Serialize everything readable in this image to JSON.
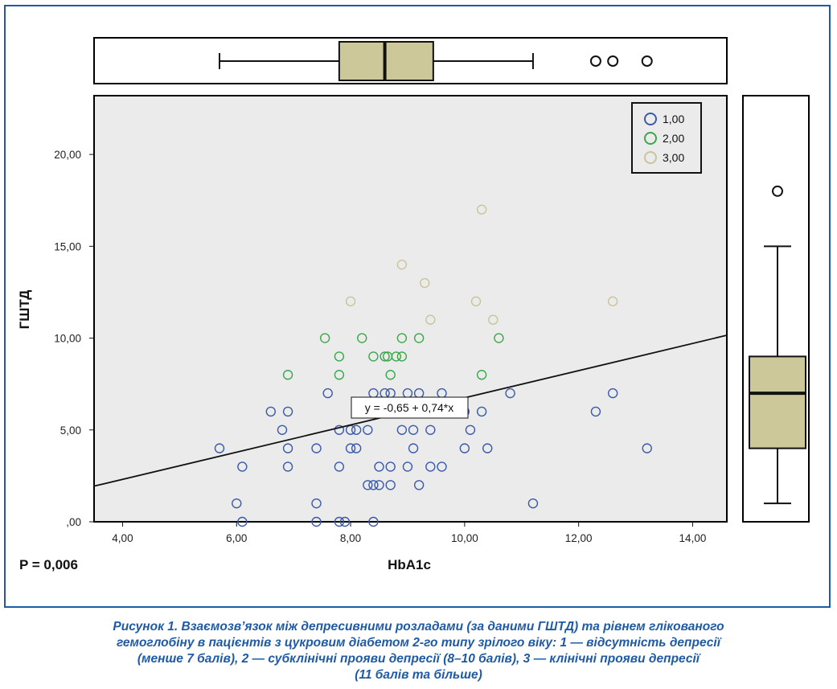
{
  "chart_data": {
    "type": "scatter",
    "xlabel": "HbA1c",
    "ylabel": "ГШТД",
    "xlim": [
      3.5,
      14.6
    ],
    "ylim": [
      0,
      23.2
    ],
    "x_ticks": [
      4,
      6,
      8,
      10,
      12,
      14
    ],
    "x_tick_labels": [
      "4,00",
      "6,00",
      "8,00",
      "10,00",
      "12,00",
      "14,00"
    ],
    "y_ticks": [
      0,
      5,
      10,
      15,
      20
    ],
    "y_tick_labels": [
      ",00",
      "5,00",
      "10,00",
      "15,00",
      "20,00"
    ],
    "grid": false,
    "legend_position": "top-right",
    "p_value_label": "P = 0,006",
    "equation_label": "y = -0,65 + 0,74*x",
    "fit_line": {
      "intercept": -0.65,
      "slope": 0.74
    },
    "colors": {
      "1,00": "#3b5ba8",
      "2,00": "#3aa84a",
      "3,00": "#c9c49a",
      "box_fill": "#cdc89a",
      "plot_bg": "#ebebeb"
    },
    "series": [
      {
        "name": "1,00",
        "points": [
          [
            5.7,
            4
          ],
          [
            6.0,
            1
          ],
          [
            6.1,
            3
          ],
          [
            6.1,
            0
          ],
          [
            6.6,
            6
          ],
          [
            6.8,
            5
          ],
          [
            6.9,
            6
          ],
          [
            6.9,
            4
          ],
          [
            6.9,
            3
          ],
          [
            7.4,
            4
          ],
          [
            7.4,
            1
          ],
          [
            7.4,
            0
          ],
          [
            7.6,
            7
          ],
          [
            7.8,
            5
          ],
          [
            7.8,
            3
          ],
          [
            7.8,
            0
          ],
          [
            7.9,
            0
          ],
          [
            8.0,
            5
          ],
          [
            8.0,
            4
          ],
          [
            8.1,
            5
          ],
          [
            8.1,
            4
          ],
          [
            8.3,
            5
          ],
          [
            8.3,
            2
          ],
          [
            8.4,
            7
          ],
          [
            8.4,
            2
          ],
          [
            8.4,
            0
          ],
          [
            8.5,
            3
          ],
          [
            8.5,
            2
          ],
          [
            8.6,
            7
          ],
          [
            8.7,
            7
          ],
          [
            8.7,
            3
          ],
          [
            8.7,
            2
          ],
          [
            8.9,
            5
          ],
          [
            9.0,
            7
          ],
          [
            9.0,
            3
          ],
          [
            9.1,
            5
          ],
          [
            9.1,
            4
          ],
          [
            9.2,
            7
          ],
          [
            9.2,
            2
          ],
          [
            9.4,
            5
          ],
          [
            9.4,
            3
          ],
          [
            9.6,
            7
          ],
          [
            9.6,
            3
          ],
          [
            10.0,
            6
          ],
          [
            10.0,
            4
          ],
          [
            10.1,
            5
          ],
          [
            10.3,
            6
          ],
          [
            10.4,
            4
          ],
          [
            10.8,
            7
          ],
          [
            11.2,
            1
          ],
          [
            12.3,
            6
          ],
          [
            12.6,
            7
          ],
          [
            13.2,
            4
          ]
        ]
      },
      {
        "name": "2,00",
        "points": [
          [
            6.9,
            8
          ],
          [
            7.55,
            10
          ],
          [
            7.8,
            9
          ],
          [
            7.8,
            8
          ],
          [
            8.2,
            10
          ],
          [
            8.4,
            9
          ],
          [
            8.6,
            9
          ],
          [
            8.65,
            9
          ],
          [
            8.8,
            9
          ],
          [
            8.9,
            10
          ],
          [
            8.9,
            9
          ],
          [
            8.7,
            8
          ],
          [
            9.2,
            10
          ],
          [
            10.3,
            8
          ],
          [
            10.6,
            10
          ]
        ]
      },
      {
        "name": "3,00",
        "points": [
          [
            8.0,
            12
          ],
          [
            8.9,
            14
          ],
          [
            9.3,
            13
          ],
          [
            9.4,
            11
          ],
          [
            10.2,
            12
          ],
          [
            10.3,
            17
          ],
          [
            10.5,
            11
          ],
          [
            12.6,
            12
          ]
        ]
      }
    ],
    "boxplot_x": {
      "whisker_low": 5.7,
      "q1": 7.8,
      "median": 8.6,
      "q3": 9.45,
      "whisker_high": 11.2,
      "outliers": [
        12.3,
        12.6,
        13.2
      ]
    },
    "boxplot_y": {
      "whisker_low": 1,
      "q1": 4,
      "median": 7,
      "q3": 9,
      "whisker_high": 15,
      "outliers": [
        18
      ]
    }
  },
  "caption": {
    "lines": [
      "Рисунок 1. Взаємозв’язок між депресивними розладами (за даними ГШТД) та рівнем глікованого",
      "гемоглобіну в пацієнтів з цукровим діабетом 2-го типу зрілого віку: 1 — відсутність депресії",
      "(менше 7 балів), 2 — субклінічні прояви депресії (8–10 балів), 3 — клінічні прояви депресії",
      "(11 балів та більше)"
    ]
  }
}
